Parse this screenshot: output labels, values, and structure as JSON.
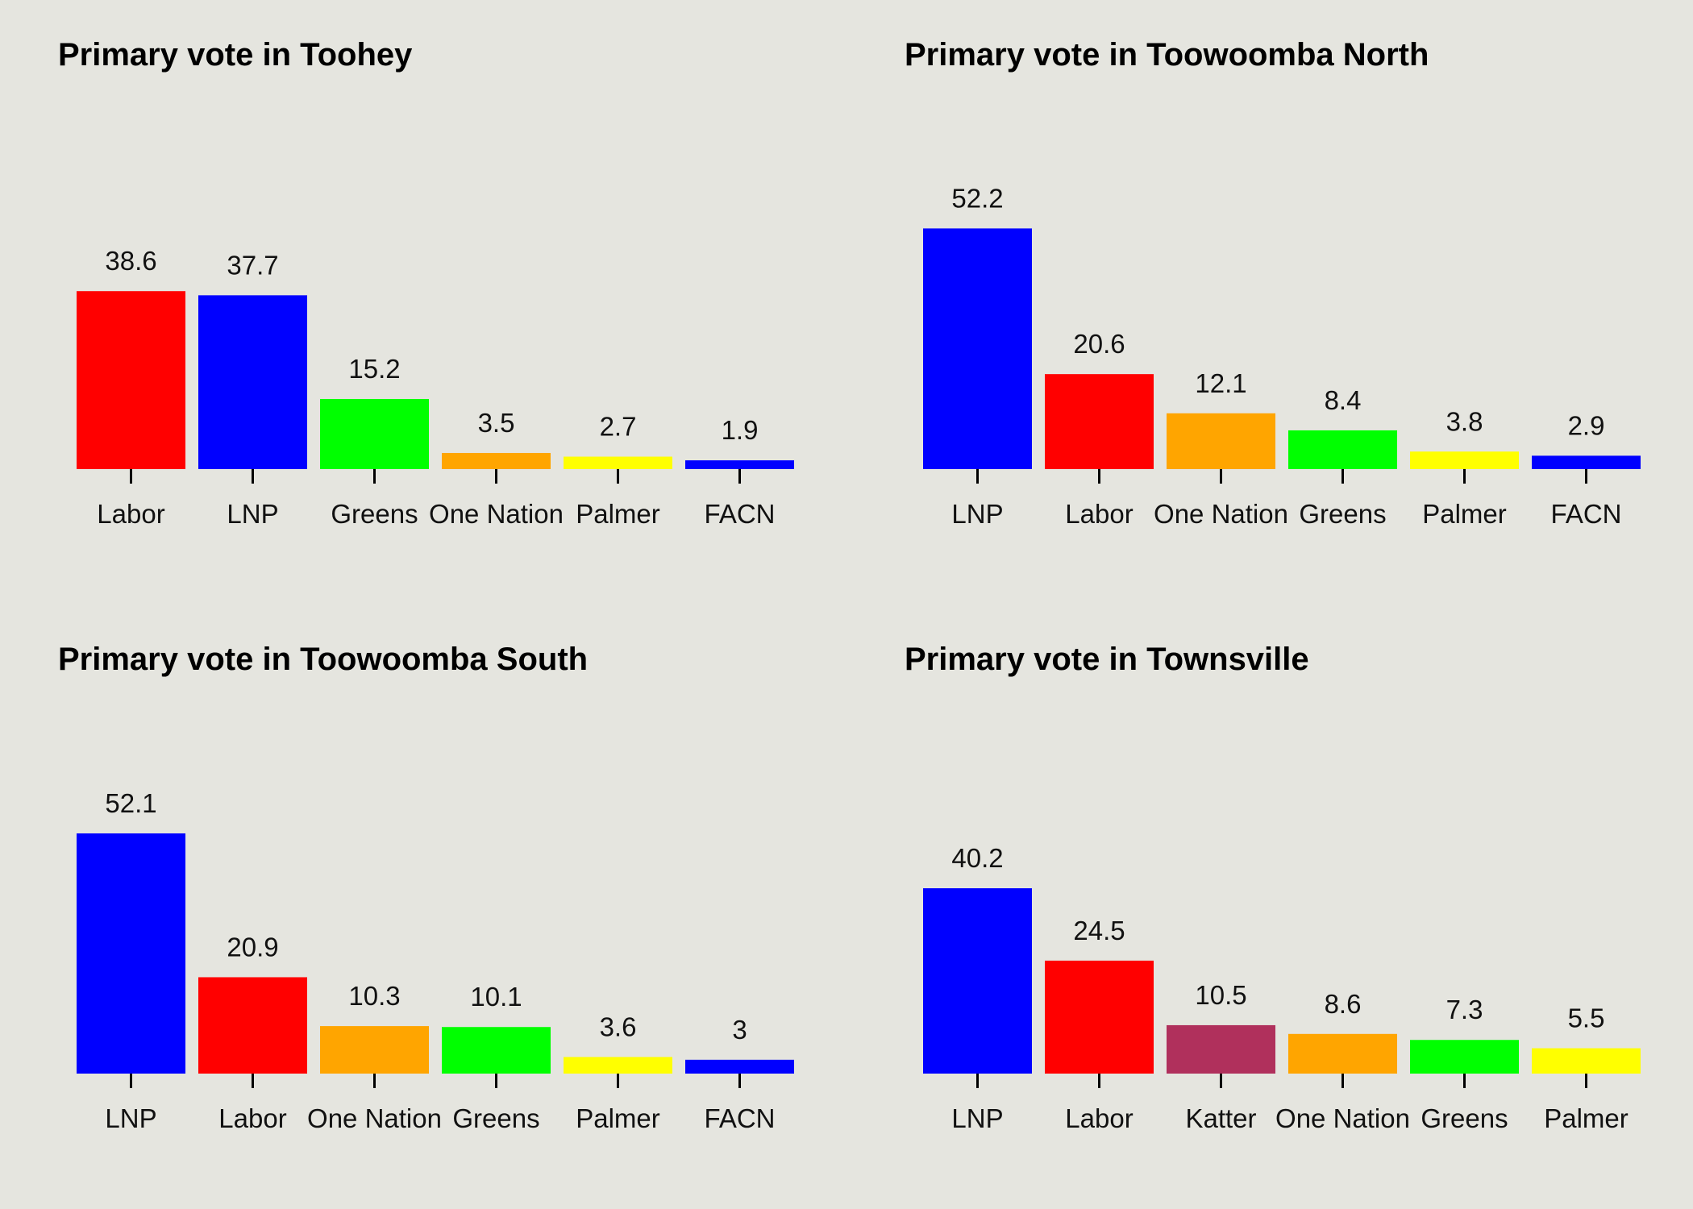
{
  "chart_data": [
    {
      "type": "bar",
      "title": "Primary vote in Toohey",
      "categories": [
        "Labor",
        "LNP",
        "Greens",
        "One Nation",
        "Palmer",
        "FACN"
      ],
      "values": [
        38.6,
        37.7,
        15.2,
        3.5,
        2.7,
        1.9
      ],
      "colors": [
        "#ff0000",
        "#0000ff",
        "#00ff00",
        "#ffa500",
        "#ffff00",
        "#0000ff"
      ],
      "ylim": [
        0,
        60
      ],
      "grid": false
    },
    {
      "type": "bar",
      "title": "Primary vote in Toowoomba North",
      "categories": [
        "LNP",
        "Labor",
        "One Nation",
        "Greens",
        "Palmer",
        "FACN"
      ],
      "values": [
        52.2,
        20.6,
        12.1,
        8.4,
        3.8,
        2.9
      ],
      "colors": [
        "#0000ff",
        "#ff0000",
        "#ffa500",
        "#00ff00",
        "#ffff00",
        "#0000ff"
      ],
      "ylim": [
        0,
        60
      ],
      "grid": false
    },
    {
      "type": "bar",
      "title": "Primary vote in Toowoomba South",
      "categories": [
        "LNP",
        "Labor",
        "One Nation",
        "Greens",
        "Palmer",
        "FACN"
      ],
      "values": [
        52.1,
        20.9,
        10.3,
        10.1,
        3.6,
        3
      ],
      "colors": [
        "#0000ff",
        "#ff0000",
        "#ffa500",
        "#00ff00",
        "#ffff00",
        "#0000ff"
      ],
      "ylim": [
        0,
        60
      ],
      "grid": false
    },
    {
      "type": "bar",
      "title": "Primary vote in Townsville",
      "categories": [
        "LNP",
        "Labor",
        "Katter",
        "One Nation",
        "Greens",
        "Palmer"
      ],
      "values": [
        40.2,
        24.5,
        10.5,
        8.6,
        7.3,
        5.5
      ],
      "colors": [
        "#0000ff",
        "#ff0000",
        "#b0305c",
        "#ffa500",
        "#00ff00",
        "#ffff00"
      ],
      "ylim": [
        0,
        60
      ],
      "grid": false
    }
  ]
}
